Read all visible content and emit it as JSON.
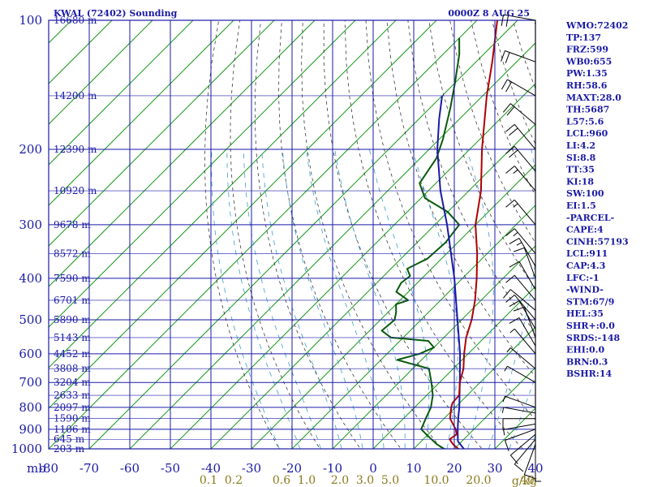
{
  "title": {
    "station": "KWAL (72402) Sounding",
    "time": "0000Z  8 AUG 25"
  },
  "indices": [
    "WMO:72402",
    "TP:137",
    "FRZ:599",
    "WB0:655",
    "PW:1.35",
    "RH:58.6",
    "MAXT:28.0",
    "TH:5687",
    "L57:5.6",
    "LCL:960",
    "LI:4.2",
    "SI:8.8",
    "TT:35",
    "KI:18",
    "SW:100",
    "EI:1.5",
    "-PARCEL-",
    "CAPE:4",
    "CINH:57193",
    "LCL:911",
    "CAP:4.3",
    "LFC:-1",
    "-WIND-",
    "STM:67/9",
    "HEL:35",
    "SHR+:0.0",
    "SRDS:-148",
    "EHI:0.0",
    "BRN:0.3",
    "BSHR:14"
  ],
  "colors": {
    "axis": "#1a1aa6",
    "isobar": "#1a1aa6",
    "isotherm": "#1a9a1a",
    "dry_adiabat": "#3a3a3a",
    "moist_adiabat": "#3aa0d0",
    "temperature": "#b00000",
    "dewpoint": "#0a5a0a",
    "parcel": "#1a1aa6",
    "mixing_ratio_label": "#8a7a1a",
    "wind": "#000000"
  },
  "chart_data": {
    "type": "skew-t",
    "y_axis": {
      "unit_label": "mb",
      "scale": "log-pressure",
      "range": [
        1000,
        100
      ],
      "ticks": [
        100,
        200,
        300,
        400,
        500,
        600,
        700,
        800,
        900,
        1000
      ]
    },
    "x_axis": {
      "unit": "°C",
      "range": [
        -80,
        40
      ],
      "ticks": [
        -80,
        -70,
        -60,
        -50,
        -40,
        -30,
        -20,
        -10,
        0,
        10,
        20,
        30,
        40
      ],
      "tick_labels": [
        "-80",
        "-70",
        "-60",
        "-50",
        "-40",
        "-30",
        "-20",
        "-10",
        "0",
        "10",
        "20",
        "30",
        "40"
      ]
    },
    "height_labels": [
      {
        "p": 100,
        "label": "16680 m"
      },
      {
        "p": 150,
        "label": "14200 m"
      },
      {
        "p": 200,
        "label": "12390 m"
      },
      {
        "p": 250,
        "label": "10920 m"
      },
      {
        "p": 300,
        "label": "9678 m"
      },
      {
        "p": 350,
        "label": "8572 m"
      },
      {
        "p": 400,
        "label": "7590 m"
      },
      {
        "p": 450,
        "label": "6701 m"
      },
      {
        "p": 500,
        "label": "5890 m"
      },
      {
        "p": 550,
        "label": "5143 m"
      },
      {
        "p": 600,
        "label": "4452 m"
      },
      {
        "p": 650,
        "label": "3808 m"
      },
      {
        "p": 700,
        "label": "3204 m"
      },
      {
        "p": 750,
        "label": "2633 m"
      },
      {
        "p": 800,
        "label": "2097 m"
      },
      {
        "p": 850,
        "label": "1590 m"
      },
      {
        "p": 900,
        "label": "1106 m"
      },
      {
        "p": 950,
        "label": "645 m"
      },
      {
        "p": 1000,
        "label": "203 m"
      }
    ],
    "mixing_ratio": {
      "unit_label": "g/kg",
      "values": [
        0.1,
        0.2,
        0.6,
        1.0,
        2.0,
        3.0,
        5.0,
        10.0,
        20.0,
        40.0
      ],
      "labels": [
        "0.1",
        "0.2",
        "0.6",
        "1.0",
        "2.0",
        "3.0",
        "5.0",
        "10.0",
        "20.0",
        "40"
      ]
    },
    "temperature": [
      {
        "p": 1014,
        "t": 23.5
      },
      {
        "p": 1000,
        "t": 21.0
      },
      {
        "p": 975,
        "t": 18.5
      },
      {
        "p": 950,
        "t": 16.5
      },
      {
        "p": 925,
        "t": 17.0
      },
      {
        "p": 900,
        "t": 15.5
      },
      {
        "p": 850,
        "t": 11.5
      },
      {
        "p": 800,
        "t": 9.0
      },
      {
        "p": 780,
        "t": 8.2
      },
      {
        "p": 750,
        "t": 8.0
      },
      {
        "p": 700,
        "t": 5.0
      },
      {
        "p": 650,
        "t": 2.5
      },
      {
        "p": 600,
        "t": -1.0
      },
      {
        "p": 550,
        "t": -4.5
      },
      {
        "p": 500,
        "t": -7.5
      },
      {
        "p": 450,
        "t": -11.5
      },
      {
        "p": 400,
        "t": -16.5
      },
      {
        "p": 350,
        "t": -22.5
      },
      {
        "p": 300,
        "t": -30.0
      },
      {
        "p": 250,
        "t": -37.0
      },
      {
        "p": 200,
        "t": -47.0
      },
      {
        "p": 150,
        "t": -59.0
      },
      {
        "p": 125,
        "t": -66.0
      },
      {
        "p": 100,
        "t": -75.0
      }
    ],
    "dewpoint": [
      {
        "p": 1014,
        "t": 21.0
      },
      {
        "p": 1000,
        "t": 17.5
      },
      {
        "p": 975,
        "t": 14.5
      },
      {
        "p": 950,
        "t": 12.0
      },
      {
        "p": 925,
        "t": 9.5
      },
      {
        "p": 900,
        "t": 7.0
      },
      {
        "p": 850,
        "t": 5.5
      },
      {
        "p": 800,
        "t": 4.0
      },
      {
        "p": 750,
        "t": 1.5
      },
      {
        "p": 700,
        "t": -2.0
      },
      {
        "p": 650,
        "t": -6.0
      },
      {
        "p": 620,
        "t": -16.0
      },
      {
        "p": 600,
        "t": -12.0
      },
      {
        "p": 580,
        "t": -10.0
      },
      {
        "p": 560,
        "t": -13.0
      },
      {
        "p": 550,
        "t": -23.0
      },
      {
        "p": 530,
        "t": -27.0
      },
      {
        "p": 500,
        "t": -26.5
      },
      {
        "p": 480,
        "t": -28.0
      },
      {
        "p": 460,
        "t": -30.0
      },
      {
        "p": 450,
        "t": -28.0
      },
      {
        "p": 430,
        "t": -33.0
      },
      {
        "p": 410,
        "t": -34.0
      },
      {
        "p": 395,
        "t": -33.5
      },
      {
        "p": 380,
        "t": -36.0
      },
      {
        "p": 360,
        "t": -33.5
      },
      {
        "p": 330,
        "t": -33.0
      },
      {
        "p": 300,
        "t": -34.0
      },
      {
        "p": 280,
        "t": -40.0
      },
      {
        "p": 260,
        "t": -49.0
      },
      {
        "p": 240,
        "t": -54.0
      },
      {
        "p": 210,
        "t": -56.0
      },
      {
        "p": 190,
        "t": -59.0
      },
      {
        "p": 160,
        "t": -65.0
      },
      {
        "p": 140,
        "t": -70.0
      },
      {
        "p": 120,
        "t": -76.0
      },
      {
        "p": 110,
        "t": -80.0
      }
    ],
    "parcel": [
      {
        "p": 1014,
        "t": 23.5
      },
      {
        "p": 960,
        "t": 19.0
      },
      {
        "p": 900,
        "t": 16.0
      },
      {
        "p": 850,
        "t": 13.5
      },
      {
        "p": 800,
        "t": 11.0
      },
      {
        "p": 700,
        "t": 5.0
      },
      {
        "p": 600,
        "t": -2.0
      },
      {
        "p": 500,
        "t": -11.0
      },
      {
        "p": 400,
        "t": -22.0
      },
      {
        "p": 300,
        "t": -37.0
      },
      {
        "p": 250,
        "t": -47.0
      },
      {
        "p": 200,
        "t": -58.0
      },
      {
        "p": 170,
        "t": -65.0
      },
      {
        "p": 150,
        "t": -70.0
      }
    ],
    "wind_barbs": [
      {
        "p": 1000,
        "dir": 180,
        "spd": 5
      },
      {
        "p": 975,
        "dir": 200,
        "spd": 10
      },
      {
        "p": 950,
        "dir": 220,
        "spd": 10
      },
      {
        "p": 925,
        "dir": 230,
        "spd": 10
      },
      {
        "p": 900,
        "dir": 250,
        "spd": 10
      },
      {
        "p": 875,
        "dir": 260,
        "spd": 5
      },
      {
        "p": 850,
        "dir": 270,
        "spd": 10
      },
      {
        "p": 825,
        "dir": 280,
        "spd": 5
      },
      {
        "p": 800,
        "dir": 290,
        "spd": 5
      },
      {
        "p": 700,
        "dir": 300,
        "spd": 5
      },
      {
        "p": 650,
        "dir": 310,
        "spd": 5
      },
      {
        "p": 600,
        "dir": 320,
        "spd": 5
      },
      {
        "p": 575,
        "dir": 330,
        "spd": 10
      },
      {
        "p": 550,
        "dir": 340,
        "spd": 10
      },
      {
        "p": 525,
        "dir": 330,
        "spd": 10
      },
      {
        "p": 500,
        "dir": 320,
        "spd": 10
      },
      {
        "p": 475,
        "dir": 310,
        "spd": 10
      },
      {
        "p": 450,
        "dir": 320,
        "spd": 10
      },
      {
        "p": 425,
        "dir": 330,
        "spd": 10
      },
      {
        "p": 400,
        "dir": 340,
        "spd": 10
      },
      {
        "p": 375,
        "dir": 330,
        "spd": 15
      },
      {
        "p": 350,
        "dir": 320,
        "spd": 15
      },
      {
        "p": 300,
        "dir": 320,
        "spd": 15
      },
      {
        "p": 250,
        "dir": 320,
        "spd": 15
      },
      {
        "p": 225,
        "dir": 320,
        "spd": 20
      },
      {
        "p": 200,
        "dir": 320,
        "spd": 20
      },
      {
        "p": 175,
        "dir": 310,
        "spd": 20
      },
      {
        "p": 150,
        "dir": 300,
        "spd": 20
      },
      {
        "p": 125,
        "dir": 290,
        "spd": 20
      },
      {
        "p": 100,
        "dir": 280,
        "spd": 20
      }
    ]
  }
}
